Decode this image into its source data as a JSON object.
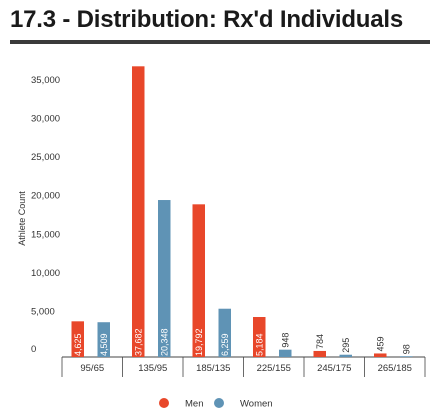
{
  "chart_data": {
    "type": "bar",
    "title": "17.3 - Distribution: Rx'd Individuals",
    "ylabel": "Athlete Count",
    "xlabel": "",
    "categories": [
      "95/65",
      "135/95",
      "185/135",
      "225/155",
      "245/175",
      "265/185"
    ],
    "series": [
      {
        "name": "Men",
        "color": "#e8472a",
        "values": [
          4625,
          37682,
          19792,
          5184,
          784,
          459
        ]
      },
      {
        "name": "Women",
        "color": "#5f93b5",
        "values": [
          4509,
          20348,
          6259,
          948,
          295,
          98
        ]
      }
    ],
    "ylim": [
      0,
      38500
    ],
    "yticks": [
      0,
      5000,
      10000,
      15000,
      20000,
      25000,
      30000,
      35000
    ],
    "ytick_labels": [
      "0",
      "5,000",
      "10,000",
      "15,000",
      "20,000",
      "25,000",
      "30,000",
      "35,000"
    ],
    "bar_labels": {
      "Men": [
        "4,625",
        "37,682",
        "19,792",
        "5,184",
        "784",
        "459"
      ],
      "Women": [
        "4,509",
        "20,348",
        "6,259",
        "948",
        "295",
        "98"
      ]
    },
    "legend": "bottom",
    "grid": false
  }
}
